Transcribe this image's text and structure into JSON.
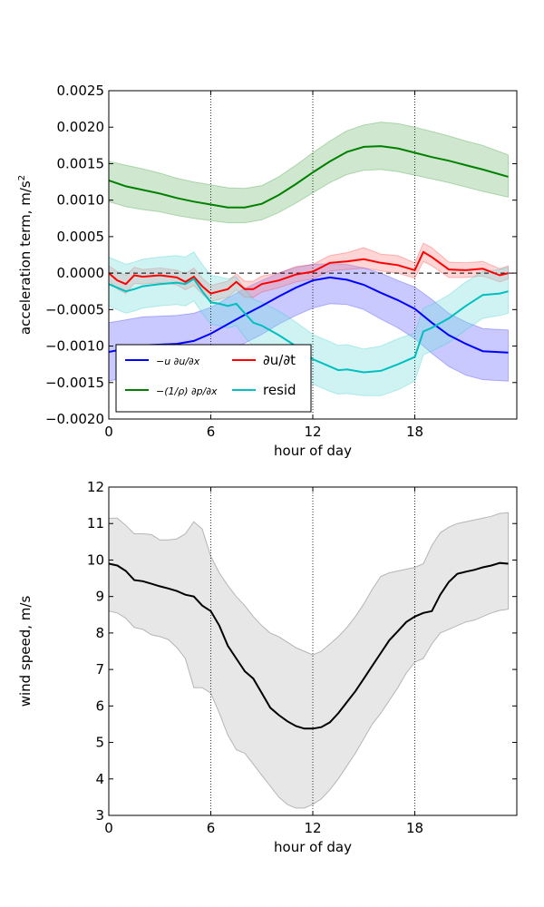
{
  "chart_data": [
    {
      "type": "line",
      "xlabel": "hour of day",
      "ylabel": "acceleration term, m/s",
      "ylabel_superscript": "2",
      "xlim": [
        0,
        24
      ],
      "ylim": [
        -0.002,
        0.0025
      ],
      "xticks": [
        0,
        6,
        12,
        18
      ],
      "xtick_labels": [
        "0",
        "6",
        "12",
        "18"
      ],
      "yticks": [
        -0.002,
        -0.0015,
        -0.001,
        -0.0005,
        0.0,
        0.0005,
        0.001,
        0.0015,
        0.002,
        0.0025
      ],
      "ytick_labels": [
        "−0.0020",
        "−0.0015",
        "−0.0010",
        "−0.0005",
        "0.0000",
        "0.0005",
        "0.0010",
        "0.0015",
        "0.0020",
        "0.0025"
      ],
      "vlines": [
        6,
        12,
        18
      ],
      "zero_line": true,
      "legend_position": "lower-left",
      "series": [
        {
          "name": "−u ∂u/∂x",
          "color": "#0000ff",
          "fill_color": "#7070ff",
          "x": [
            0,
            2,
            4,
            5,
            6,
            7,
            8,
            9,
            10,
            11,
            12,
            13,
            14,
            15,
            16,
            17,
            18,
            19,
            20,
            21,
            22,
            23.5
          ],
          "values": [
            -0.00108,
            -0.00099,
            -0.00097,
            -0.00093,
            -0.00083,
            -0.0007,
            -0.00057,
            -0.00045,
            -0.00032,
            -0.0002,
            -0.0001,
            -6e-05,
            -9e-05,
            -0.00016,
            -0.00027,
            -0.00037,
            -0.00049,
            -0.00068,
            -0.00085,
            -0.00097,
            -0.00107,
            -0.00109
          ],
          "lower": [
            -0.00148,
            -0.00138,
            -0.00136,
            -0.0013,
            -0.0012,
            -0.00108,
            -0.00096,
            -0.00084,
            -0.0007,
            -0.00058,
            -0.00048,
            -0.00042,
            -0.00043,
            -0.0005,
            -0.00063,
            -0.00075,
            -0.0009,
            -0.0011,
            -0.00128,
            -0.0014,
            -0.00146,
            -0.00148
          ],
          "upper": [
            -0.00068,
            -0.0006,
            -0.00058,
            -0.00055,
            -0.00047,
            -0.00034,
            -0.00021,
            -0.0001,
            0.0,
            8e-05,
            0.00012,
            0.00013,
            0.00012,
            7e-05,
            0.0,
            -0.0001,
            -0.00019,
            -0.00036,
            -0.00055,
            -0.00067,
            -0.00076,
            -0.00078
          ]
        },
        {
          "name": "−(1/ρ) ∂p/∂x",
          "color": "#008000",
          "fill_color": "#80c080",
          "x": [
            0,
            1,
            2,
            3,
            4,
            5,
            6,
            7,
            8,
            9,
            10,
            11,
            12,
            13,
            14,
            15,
            16,
            17,
            18,
            19,
            20,
            21,
            22,
            23.5
          ],
          "values": [
            0.00127,
            0.00119,
            0.00114,
            0.00109,
            0.00103,
            0.00098,
            0.00094,
            0.0009,
            0.0009,
            0.00095,
            0.00107,
            0.00122,
            0.00138,
            0.00153,
            0.00166,
            0.00173,
            0.00174,
            0.00171,
            0.00165,
            0.00159,
            0.00154,
            0.00148,
            0.00142,
            0.00132
          ],
          "lower": [
            0.00098,
            0.00091,
            0.00087,
            0.00084,
            0.00079,
            0.00075,
            0.00072,
            0.00069,
            0.00069,
            0.00073,
            0.00083,
            0.00096,
            0.0011,
            0.00124,
            0.00135,
            0.00141,
            0.00142,
            0.00139,
            0.00134,
            0.00129,
            0.00124,
            0.00118,
            0.00112,
            0.00104
          ],
          "upper": [
            0.00153,
            0.00148,
            0.00143,
            0.00137,
            0.0013,
            0.00125,
            0.00121,
            0.00117,
            0.00116,
            0.0012,
            0.00132,
            0.00148,
            0.00165,
            0.00181,
            0.00195,
            0.00203,
            0.00207,
            0.00205,
            0.002,
            0.00194,
            0.00188,
            0.00181,
            0.00175,
            0.00162
          ]
        },
        {
          "name": "∂u/∂t",
          "color": "#ff0000",
          "fill_color": "#ff9090",
          "x": [
            0,
            0.5,
            1,
            1.5,
            2,
            3,
            4,
            4.5,
            5,
            5.5,
            6,
            6.5,
            7,
            7.5,
            8,
            8.5,
            9,
            10,
            11,
            12,
            13,
            14,
            15,
            16,
            17,
            18,
            18.5,
            19,
            20,
            21,
            22,
            23,
            23.5
          ],
          "values": [
            0.0,
            -0.0001,
            -0.00015,
            -3e-05,
            -5e-05,
            -3e-05,
            -6e-05,
            -0.00012,
            -5e-05,
            -0.00018,
            -0.00028,
            -0.00025,
            -0.00022,
            -0.00012,
            -0.00022,
            -0.00022,
            -0.00015,
            -0.0001,
            -2e-05,
            2e-05,
            0.00014,
            0.00016,
            0.00019,
            0.00014,
            0.00011,
            4e-05,
            0.00029,
            0.00022,
            5e-05,
            4e-05,
            6e-05,
            -3e-05,
            0.0
          ],
          "lower": [
            -0.0001,
            -0.00022,
            -0.00028,
            -0.00014,
            -0.00015,
            -0.00013,
            -0.00016,
            -0.00023,
            -0.00017,
            -0.00029,
            -0.00039,
            -0.00036,
            -0.00033,
            -0.00023,
            -0.00033,
            -0.00033,
            -0.00026,
            -0.0002,
            -0.00012,
            -8e-05,
            3e-05,
            5e-05,
            7e-05,
            3e-05,
            0.0,
            -7e-05,
            0.00016,
            0.0001,
            -6e-05,
            -6e-05,
            -4e-05,
            -0.00012,
            -8e-05
          ],
          "upper": [
            0.0001,
            2e-05,
            -3e-05,
            8e-05,
            5e-05,
            7e-05,
            4e-05,
            -1e-05,
            7e-05,
            -7e-05,
            -0.00017,
            -0.00014,
            -0.00011,
            -1e-05,
            -0.00011,
            -0.00011,
            -4e-05,
            0.0,
            9e-05,
            0.00012,
            0.00024,
            0.00028,
            0.00035,
            0.00026,
            0.00024,
            0.00014,
            0.00041,
            0.00035,
            0.00015,
            0.00014,
            0.00016,
            6e-05,
            0.0001
          ]
        },
        {
          "name": "resid",
          "color": "#00bfbf",
          "fill_color": "#80e0e0",
          "x": [
            0,
            1,
            1.5,
            2,
            3,
            4,
            4.5,
            5,
            5.5,
            6,
            6.5,
            7,
            7.5,
            8,
            8.5,
            9,
            10,
            11,
            12,
            13,
            13.5,
            14,
            15,
            16,
            17,
            18,
            18.5,
            19,
            20,
            21,
            22,
            23,
            23.5
          ],
          "values": [
            -0.00015,
            -0.00025,
            -0.00022,
            -0.00018,
            -0.00015,
            -0.00013,
            -0.00015,
            -8e-05,
            -0.00025,
            -0.0004,
            -0.00042,
            -0.00045,
            -0.00042,
            -0.00055,
            -0.00068,
            -0.00072,
            -0.00085,
            -0.001,
            -0.00118,
            -0.00128,
            -0.00133,
            -0.00132,
            -0.00136,
            -0.00134,
            -0.00125,
            -0.00115,
            -0.0008,
            -0.00075,
            -0.00062,
            -0.00045,
            -0.0003,
            -0.00028,
            -0.00025
          ],
          "lower": [
            -0.00045,
            -0.00055,
            -0.00052,
            -0.00048,
            -0.00045,
            -0.00043,
            -0.00045,
            -0.00038,
            -0.00055,
            -0.0007,
            -0.00072,
            -0.00075,
            -0.00072,
            -0.00088,
            -0.001,
            -0.00105,
            -0.00118,
            -0.00133,
            -0.00152,
            -0.00162,
            -0.00166,
            -0.00165,
            -0.00168,
            -0.00168,
            -0.0016,
            -0.00148,
            -0.00112,
            -0.00107,
            -0.00095,
            -0.00078,
            -0.00062,
            -0.00058,
            -0.00055
          ],
          "upper": [
            0.00022,
            0.00012,
            0.00015,
            0.00019,
            0.00022,
            0.00024,
            0.00022,
            0.00029,
            0.00012,
            -3e-05,
            -5e-05,
            -8e-05,
            -5e-05,
            -0.00022,
            -0.00036,
            -0.0004,
            -0.00052,
            -0.00067,
            -0.00084,
            -0.00094,
            -0.00099,
            -0.00098,
            -0.00104,
            -0.001,
            -0.0009,
            -0.00082,
            -0.00048,
            -0.00043,
            -0.0003,
            -0.00012,
            2e-05,
            5e-05,
            8e-05
          ]
        }
      ],
      "legend": [
        {
          "label": "−u ∂u/∂x",
          "color": "#0000ff"
        },
        {
          "label": "∂u/∂t",
          "color": "#ff0000"
        },
        {
          "label": "−(1/ρ) ∂p/∂x",
          "color": "#008000"
        },
        {
          "label": "resid",
          "color": "#00bfbf"
        }
      ]
    },
    {
      "type": "line",
      "xlabel": "hour of day",
      "ylabel": "wind speed, m/s",
      "xlim": [
        0,
        24
      ],
      "ylim": [
        3,
        12
      ],
      "xticks": [
        0,
        6,
        12,
        18
      ],
      "xtick_labels": [
        "0",
        "6",
        "12",
        "18"
      ],
      "yticks": [
        3,
        4,
        5,
        6,
        7,
        8,
        9,
        10,
        11,
        12
      ],
      "ytick_labels": [
        "3",
        "4",
        "5",
        "6",
        "7",
        "8",
        "9",
        "10",
        "11",
        "12"
      ],
      "vlines": [
        6,
        12,
        18
      ],
      "series": [
        {
          "name": "",
          "color": "#000000",
          "fill_color": "#c0c0c0",
          "x": [
            0,
            0.5,
            1,
            1.5,
            2,
            2.5,
            3,
            3.5,
            4,
            4.5,
            5,
            5.5,
            6,
            6.5,
            7,
            7.5,
            8,
            8.5,
            9,
            9.5,
            10,
            10.5,
            11,
            11.5,
            12,
            12.5,
            13,
            13.5,
            14,
            14.5,
            15,
            15.5,
            16,
            16.5,
            17,
            17.5,
            18,
            18.5,
            19,
            19.5,
            20,
            20.5,
            21,
            21.5,
            22,
            22.5,
            23,
            23.5
          ],
          "values": [
            9.9,
            9.85,
            9.7,
            9.45,
            9.42,
            9.35,
            9.28,
            9.22,
            9.15,
            9.05,
            9.0,
            8.75,
            8.6,
            8.2,
            7.65,
            7.3,
            6.95,
            6.75,
            6.35,
            5.95,
            5.75,
            5.58,
            5.45,
            5.38,
            5.38,
            5.42,
            5.55,
            5.8,
            6.1,
            6.4,
            6.75,
            7.1,
            7.45,
            7.8,
            8.05,
            8.3,
            8.45,
            8.55,
            8.6,
            9.05,
            9.4,
            9.62,
            9.68,
            9.73,
            9.8,
            9.85,
            9.92,
            9.9
          ],
          "lower": [
            8.6,
            8.55,
            8.4,
            8.15,
            8.1,
            7.95,
            7.9,
            7.82,
            7.6,
            7.3,
            6.5,
            6.5,
            6.35,
            5.8,
            5.2,
            4.8,
            4.7,
            4.4,
            4.1,
            3.8,
            3.5,
            3.3,
            3.2,
            3.2,
            3.3,
            3.45,
            3.7,
            4.0,
            4.35,
            4.7,
            5.1,
            5.5,
            5.8,
            6.15,
            6.5,
            6.9,
            7.2,
            7.3,
            7.7,
            8.0,
            8.1,
            8.2,
            8.3,
            8.35,
            8.45,
            8.55,
            8.62,
            8.65
          ],
          "upper": [
            11.15,
            11.15,
            10.95,
            10.72,
            10.72,
            10.7,
            10.55,
            10.55,
            10.58,
            10.72,
            11.05,
            10.85,
            10.1,
            9.65,
            9.3,
            9.0,
            8.75,
            8.45,
            8.2,
            8.0,
            7.9,
            7.75,
            7.6,
            7.5,
            7.4,
            7.5,
            7.7,
            7.9,
            8.15,
            8.45,
            8.8,
            9.2,
            9.55,
            9.65,
            9.7,
            9.75,
            9.8,
            9.9,
            10.4,
            10.75,
            10.9,
            11.0,
            11.05,
            11.1,
            11.15,
            11.2,
            11.28,
            11.3
          ]
        }
      ]
    }
  ]
}
